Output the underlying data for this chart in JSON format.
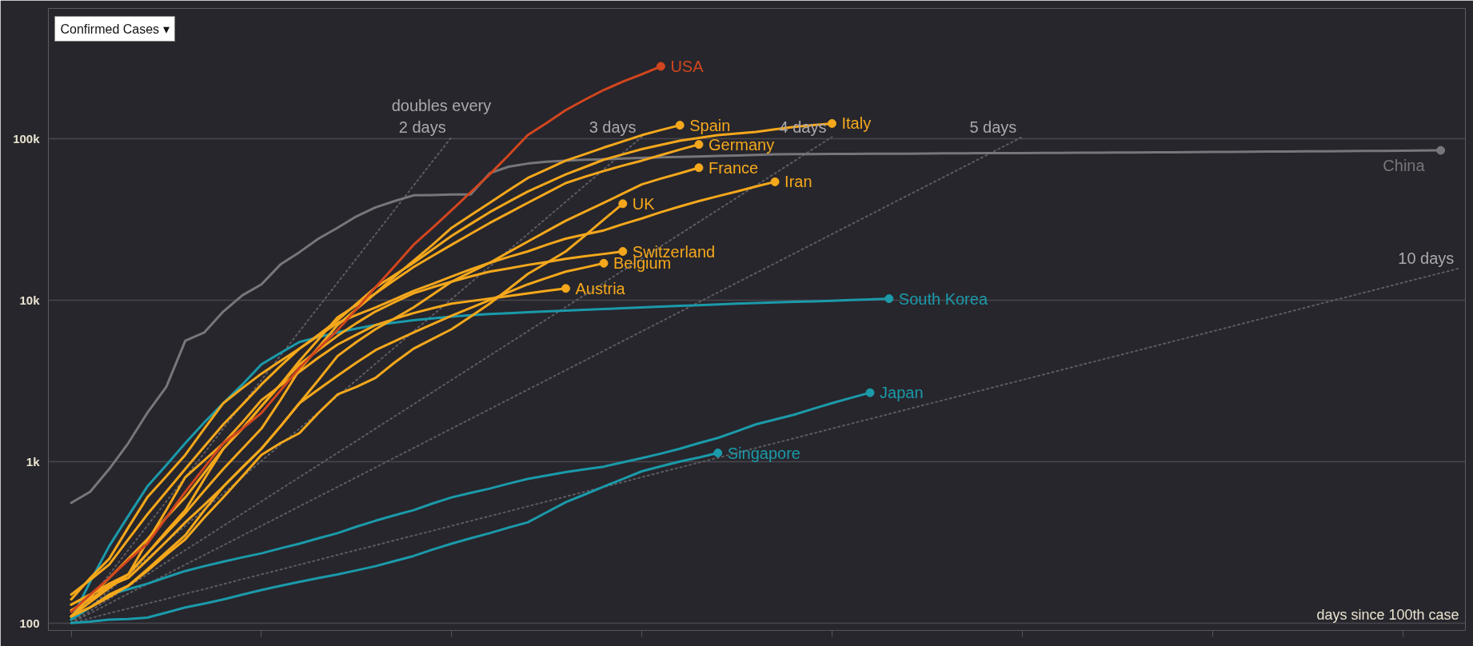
{
  "chart_data": {
    "type": "line",
    "title": "Confirmed Cases ▾",
    "xlabel": "days since 100th case",
    "categories": [
      null,
      null,
      null,
      null,
      null,
      null,
      null,
      null,
      null,
      null,
      null,
      null,
      null,
      null,
      null,
      null,
      null,
      null,
      null,
      null,
      null,
      null,
      null,
      null,
      null,
      null,
      null,
      null,
      null,
      null,
      null,
      null,
      null,
      null,
      null,
      null,
      null,
      null,
      null,
      null,
      null,
      null,
      null,
      null,
      null,
      null,
      null,
      null,
      null,
      null,
      null,
      null,
      null,
      null,
      null,
      null,
      null,
      null,
      null,
      null,
      null,
      null,
      null,
      null,
      null,
      null,
      null,
      null,
      null,
      null,
      null,
      null,
      null,
      null
    ],
    "log": true,
    "grid": "y",
    "tick_labels": "y",
    "line_style": "solid",
    "ylim": [
      90,
      640000
    ],
    "yticks": [
      {
        "value": 100,
        "label": "100"
      },
      {
        "value": 1000,
        "label": "1k"
      },
      {
        "value": 10000,
        "label": "10k"
      },
      {
        "value": 100000,
        "label": "100k"
      }
    ],
    "annotations": [
      "doubles every"
    ],
    "series": [
      {
        "name": "2 days",
        "color": "#5c5c62",
        "line_style": "dotted",
        "values": [
          100,
          141,
          200,
          283,
          400,
          566,
          800,
          1131,
          1600,
          2263,
          3200,
          4525,
          6400,
          9051,
          12800,
          18102,
          25600,
          36204,
          51200,
          72408,
          102400,
          null,
          null,
          null,
          null,
          null,
          null,
          null,
          null,
          null,
          null,
          null,
          null,
          null,
          null,
          null,
          null,
          null,
          null,
          null,
          null,
          null,
          null,
          null,
          null,
          null,
          null,
          null,
          null,
          null,
          null,
          null,
          null,
          null,
          null,
          null,
          null,
          null,
          null,
          null,
          null,
          null,
          null,
          null,
          null,
          null,
          null,
          null,
          null,
          null,
          null,
          null,
          null,
          null
        ]
      },
      {
        "name": "3 days",
        "color": "#5c5c62",
        "line_style": "dotted",
        "values": [
          100,
          126,
          159,
          200,
          252,
          317,
          400,
          504,
          635,
          800,
          1008,
          1270,
          1600,
          2016,
          2540,
          3200,
          4032,
          5080,
          6400,
          8063,
          10159,
          12800,
          16127,
          20319,
          25600,
          32254,
          40637,
          51200,
          64508,
          81275,
          102400,
          null,
          null,
          null,
          null,
          null,
          null,
          null,
          null,
          null,
          null,
          null,
          null,
          null,
          null,
          null,
          null,
          null,
          null,
          null,
          null,
          null,
          null,
          null,
          null,
          null,
          null,
          null,
          null,
          null,
          null,
          null,
          null,
          null,
          null,
          null,
          null,
          null,
          null,
          null,
          null,
          null,
          null,
          null
        ]
      },
      {
        "name": "4 days",
        "color": "#5c5c62",
        "line_style": "dotted",
        "values": [
          100,
          119,
          141,
          168,
          200,
          238,
          283,
          336,
          400,
          476,
          566,
          673,
          800,
          951,
          1131,
          1345,
          1600,
          1903,
          2263,
          2691,
          3200,
          3805,
          4525,
          5382,
          6400,
          7611,
          9051,
          10764,
          12800,
          15222,
          18102,
          21527,
          25600,
          30444,
          36204,
          43054,
          51200,
          60887,
          72408,
          86108,
          102400,
          null,
          null,
          null,
          null,
          null,
          null,
          null,
          null,
          null,
          null,
          null,
          null,
          null,
          null,
          null,
          null,
          null,
          null,
          null,
          null,
          null,
          null,
          null,
          null,
          null,
          null,
          null,
          null,
          null,
          null,
          null,
          null,
          null
        ]
      },
      {
        "name": "5 days",
        "color": "#5c5c62",
        "line_style": "dotted",
        "values": [
          100,
          115,
          132,
          152,
          174,
          200,
          230,
          264,
          303,
          348,
          400,
          459,
          528,
          606,
          696,
          800,
          919,
          1056,
          1213,
          1393,
          1600,
          1838,
          2111,
          2425,
          2786,
          3200,
          3676,
          4222,
          4850,
          5572,
          6400,
          7352,
          8445,
          9701,
          11143,
          12800,
          14703,
          16890,
          19401,
          22286,
          25600,
          29407,
          33779,
          38802,
          44572,
          51200,
          58813,
          67559,
          77604,
          89144,
          102400,
          null,
          null,
          null,
          null,
          null,
          null,
          null,
          null,
          null,
          null,
          null,
          null,
          null,
          null,
          null,
          null,
          null,
          null,
          null,
          null,
          null,
          null,
          null
        ]
      },
      {
        "name": "10 days",
        "color": "#5c5c62",
        "line_style": "dotted",
        "values": [
          100,
          107,
          115,
          123,
          132,
          141,
          152,
          162,
          174,
          187,
          200,
          214,
          230,
          246,
          264,
          283,
          303,
          325,
          348,
          373,
          400,
          429,
          459,
          492,
          528,
          566,
          606,
          650,
          696,
          746,
          800,
          857,
          919,
          985,
          1056,
          1131,
          1213,
          1300,
          1393,
          1493,
          1600,
          1715,
          1838,
          1970,
          2111,
          2263,
          2425,
          2599,
          2786,
          2986,
          3200,
          3430,
          3676,
          3940,
          4222,
          4525,
          4850,
          5198,
          5572,
          5971,
          6400,
          6859,
          7352,
          7879,
          8445,
          9051,
          9701,
          10397,
          11143,
          11943,
          12800,
          13719,
          14703,
          15758
        ]
      },
      {
        "name": "China",
        "color": "#77777b",
        "values": [
          555,
          650,
          900,
          1300,
          2000,
          2900,
          5600,
          6300,
          8500,
          10700,
          12500,
          16600,
          19800,
          24000,
          28000,
          33000,
          37500,
          41000,
          44500,
          44700,
          45000,
          45000,
          61000,
          67000,
          70000,
          72000,
          73000,
          74000,
          74500,
          75300,
          76000,
          76500,
          77000,
          77500,
          78000,
          78500,
          79300,
          80000,
          80100,
          80200,
          80300,
          80400,
          80500,
          80600,
          80700,
          80900,
          81000,
          81100,
          81200,
          81300,
          81400,
          81500,
          81600,
          81700,
          81800,
          81900,
          82000,
          82150,
          82300,
          82450,
          82600,
          82750,
          82900,
          83050,
          83200,
          83350,
          83500,
          83650,
          83800,
          83950,
          84100,
          84300,
          84500,
          null
        ]
      },
      {
        "name": "South Korea",
        "color": "#1b9aaa",
        "values": [
          105,
          180,
          300,
          460,
          700,
          950,
          1300,
          1750,
          2300,
          3000,
          4000,
          4700,
          5500,
          5900,
          6300,
          6650,
          7000,
          7250,
          7500,
          7700,
          7900,
          8050,
          8200,
          8300,
          8400,
          8500,
          8600,
          8700,
          8800,
          8900,
          9000,
          9100,
          9200,
          9300,
          9400,
          9500,
          9580,
          9660,
          9740,
          9820,
          9900,
          10000,
          10100,
          10200,
          null,
          null,
          null,
          null,
          null,
          null,
          null,
          null,
          null,
          null,
          null,
          null,
          null,
          null,
          null,
          null,
          null,
          null,
          null,
          null,
          null,
          null,
          null,
          null,
          null,
          null,
          null,
          null,
          null,
          null
        ]
      },
      {
        "name": "Japan",
        "color": "#1b9aaa",
        "values": [
          105,
          125,
          150,
          162,
          175,
          192,
          210,
          225,
          240,
          255,
          270,
          290,
          310,
          335,
          360,
          395,
          430,
          465,
          500,
          550,
          600,
          640,
          680,
          730,
          780,
          820,
          860,
          895,
          930,
          990,
          1050,
          1120,
          1200,
          1300,
          1400,
          1540,
          1700,
          1820,
          1950,
          2120,
          2300,
          2480,
          2670,
          null,
          null,
          null,
          null,
          null,
          null,
          null,
          null,
          null,
          null,
          null,
          null,
          null,
          null,
          null,
          null,
          null,
          null,
          null,
          null,
          null,
          null,
          null,
          null,
          null,
          null,
          null,
          null,
          null,
          null,
          null
        ]
      },
      {
        "name": "Singapore",
        "color": "#1b9aaa",
        "values": [
          100,
          102,
          105,
          106,
          108,
          116,
          125,
          132,
          140,
          150,
          160,
          170,
          180,
          190,
          200,
          212,
          225,
          242,
          260,
          285,
          310,
          335,
          360,
          390,
          420,
          485,
          560,
          625,
          700,
          780,
          870,
          935,
          1000,
          1060,
          1130,
          null,
          null,
          null,
          null,
          null,
          null,
          null,
          null,
          null,
          null,
          null,
          null,
          null,
          null,
          null,
          null,
          null,
          null,
          null,
          null,
          null,
          null,
          null,
          null,
          null,
          null,
          null,
          null,
          null,
          null,
          null,
          null,
          null,
          null,
          null,
          null,
          null,
          null,
          null
        ]
      },
      {
        "name": "Austria",
        "color": "#f5a81c",
        "values": [
          110,
          135,
          165,
          200,
          320,
          500,
          800,
          1020,
          1300,
          1750,
          2400,
          2950,
          3600,
          4400,
          5300,
          6100,
          7000,
          7650,
          8300,
          8900,
          9500,
          9850,
          10200,
          10600,
          11000,
          11400,
          11800,
          null,
          null,
          null,
          null,
          null,
          null,
          null,
          null,
          null,
          null,
          null,
          null,
          null,
          null,
          null,
          null,
          null,
          null,
          null,
          null,
          null,
          null,
          null,
          null,
          null,
          null,
          null,
          null,
          null,
          null,
          null,
          null,
          null,
          null,
          null,
          null,
          null,
          null,
          null,
          null,
          null,
          null,
          null,
          null,
          null,
          null,
          null
        ]
      },
      {
        "name": "Belgium",
        "color": "#f5a81c",
        "values": [
          110,
          125,
          145,
          170,
          215,
          275,
          350,
          500,
          700,
          920,
          1200,
          1650,
          2300,
          2800,
          3400,
          4100,
          4900,
          5550,
          6300,
          7100,
          8000,
          8950,
          10000,
          11200,
          12500,
          13700,
          15000,
          15900,
          16900,
          null,
          null,
          null,
          null,
          null,
          null,
          null,
          null,
          null,
          null,
          null,
          null,
          null,
          null,
          null,
          null,
          null,
          null,
          null,
          null,
          null,
          null,
          null,
          null,
          null,
          null,
          null,
          null,
          null,
          null,
          null,
          null,
          null,
          null,
          null,
          null,
          null,
          null,
          null,
          null,
          null,
          null,
          null,
          null,
          null
        ]
      },
      {
        "name": "Switzerland",
        "color": "#f5a81c",
        "values": [
          110,
          145,
          190,
          250,
          330,
          450,
          600,
          850,
          1200,
          1600,
          2200,
          3000,
          4000,
          4900,
          6000,
          7200,
          8500,
          9700,
          11000,
          12000,
          13000,
          14000,
          15000,
          15700,
          16500,
          17200,
          18000,
          18700,
          19300,
          20000,
          null,
          null,
          null,
          null,
          null,
          null,
          null,
          null,
          null,
          null,
          null,
          null,
          null,
          null,
          null,
          null,
          null,
          null,
          null,
          null,
          null,
          null,
          null,
          null,
          null,
          null,
          null,
          null,
          null,
          null,
          null,
          null,
          null,
          null,
          null,
          null,
          null,
          null,
          null,
          null,
          null,
          null,
          null,
          null
        ]
      },
      {
        "name": "UK",
        "color": "#f5a81c",
        "values": [
          110,
          125,
          150,
          170,
          210,
          265,
          330,
          450,
          600,
          810,
          1100,
          1300,
          1500,
          2000,
          2600,
          2900,
          3300,
          4100,
          5000,
          5750,
          6600,
          7900,
          9500,
          11700,
          14500,
          17000,
          20000,
          25000,
          31500,
          39500,
          null,
          null,
          null,
          null,
          null,
          null,
          null,
          null,
          null,
          null,
          null,
          null,
          null,
          null,
          null,
          null,
          null,
          null,
          null,
          null,
          null,
          null,
          null,
          null,
          null,
          null,
          null,
          null,
          null,
          null,
          null,
          null,
          null,
          null,
          null,
          null,
          null,
          null,
          null,
          null,
          null,
          null,
          null,
          null
        ]
      },
      {
        "name": "Iran",
        "color": "#f5a81c",
        "values": [
          140,
          190,
          250,
          390,
          600,
          810,
          1100,
          1600,
          2300,
          2850,
          3500,
          4200,
          5000,
          6000,
          7200,
          8100,
          9000,
          10100,
          11400,
          12600,
          14000,
          15500,
          17000,
          18500,
          20000,
          22000,
          24000,
          25500,
          27000,
          29500,
          32000,
          35000,
          38000,
          41000,
          44000,
          47000,
          50500,
          54000,
          null,
          null,
          null,
          null,
          null,
          null,
          null,
          null,
          null,
          null,
          null,
          null,
          null,
          null,
          null,
          null,
          null,
          null,
          null,
          null,
          null,
          null,
          null,
          null,
          null,
          null,
          null,
          null,
          null,
          null,
          null,
          null,
          null,
          null,
          null,
          null
        ]
      },
      {
        "name": "France",
        "color": "#f5a81c",
        "values": [
          130,
          150,
          170,
          190,
          245,
          320,
          420,
          540,
          700,
          920,
          1200,
          1650,
          2300,
          3200,
          4500,
          5500,
          6600,
          7700,
          9000,
          10800,
          13000,
          14900,
          17000,
          19800,
          23000,
          26700,
          31000,
          35200,
          40000,
          45600,
          52000,
          56500,
          61000,
          66000,
          null,
          null,
          null,
          null,
          null,
          null,
          null,
          null,
          null,
          null,
          null,
          null,
          null,
          null,
          null,
          null,
          null,
          null,
          null,
          null,
          null,
          null,
          null,
          null,
          null,
          null,
          null,
          null,
          null,
          null,
          null,
          null,
          null,
          null,
          null,
          null,
          null,
          null,
          null,
          null
        ]
      },
      {
        "name": "Germany",
        "color": "#f5a81c",
        "values": [
          130,
          150,
          175,
          200,
          270,
          360,
          480,
          660,
          900,
          1200,
          1600,
          2400,
          3700,
          5100,
          7000,
          8800,
          11000,
          13300,
          16000,
          18800,
          22000,
          25700,
          30000,
          34600,
          40000,
          46000,
          53000,
          58000,
          63000,
          68000,
          73000,
          79000,
          85500,
          92000,
          null,
          null,
          null,
          null,
          null,
          null,
          null,
          null,
          null,
          null,
          null,
          null,
          null,
          null,
          null,
          null,
          null,
          null,
          null,
          null,
          null,
          null,
          null,
          null,
          null,
          null,
          null,
          null,
          null,
          null,
          null,
          null,
          null,
          null,
          null,
          null,
          null,
          null,
          null,
          null
        ]
      },
      {
        "name": "Spain",
        "color": "#f5a81c",
        "values": [
          120,
          140,
          170,
          200,
          270,
          370,
          500,
          780,
          1200,
          1600,
          2200,
          3000,
          4200,
          5700,
          7800,
          9300,
          11000,
          14000,
          17500,
          22000,
          28000,
          33500,
          40000,
          47800,
          57000,
          64500,
          73000,
          80000,
          88000,
          96000,
          105000,
          113000,
          121000,
          null,
          null,
          null,
          null,
          null,
          null,
          null,
          null,
          null,
          null,
          null,
          null,
          null,
          null,
          null,
          null,
          null,
          null,
          null,
          null,
          null,
          null,
          null,
          null,
          null,
          null,
          null,
          null,
          null,
          null,
          null,
          null,
          null,
          null,
          null,
          null,
          null,
          null,
          null,
          null,
          null
        ]
      },
      {
        "name": "Italy",
        "color": "#f5a81c",
        "values": [
          150,
          185,
          230,
          330,
          470,
          650,
          900,
          1240,
          1700,
          2250,
          3000,
          3900,
          5000,
          6100,
          7500,
          9500,
          12000,
          14300,
          17000,
          20600,
          25000,
          29600,
          35000,
          40600,
          47000,
          53100,
          60000,
          66600,
          74000,
          79800,
          86000,
          91300,
          97000,
          101000,
          105000,
          107500,
          110000,
          114000,
          118000,
          121000,
          124000,
          null,
          null,
          null,
          null,
          null,
          null,
          null,
          null,
          null,
          null,
          null,
          null,
          null,
          null,
          null,
          null,
          null,
          null,
          null,
          null,
          null,
          null,
          null,
          null,
          null,
          null,
          null,
          null,
          null,
          null,
          null,
          null,
          null
        ]
      },
      {
        "name": "USA",
        "color": "#d2461e",
        "values": [
          117,
          150,
          190,
          245,
          310,
          450,
          650,
          920,
          1300,
          1600,
          2000,
          2750,
          3800,
          5000,
          6500,
          8800,
          12000,
          16200,
          22000,
          28000,
          36000,
          46500,
          60000,
          79000,
          105000,
          125000,
          150000,
          174000,
          200000,
          225000,
          250000,
          280000,
          null,
          null,
          null,
          null,
          null,
          null,
          null,
          null,
          null,
          null,
          null,
          null,
          null,
          null,
          null,
          null,
          null,
          null,
          null,
          null,
          null,
          null,
          null,
          null,
          null,
          null,
          null,
          null,
          null,
          null,
          null,
          null,
          null,
          null,
          null,
          null,
          null,
          null,
          null,
          null,
          null,
          null
        ]
      }
    ]
  }
}
